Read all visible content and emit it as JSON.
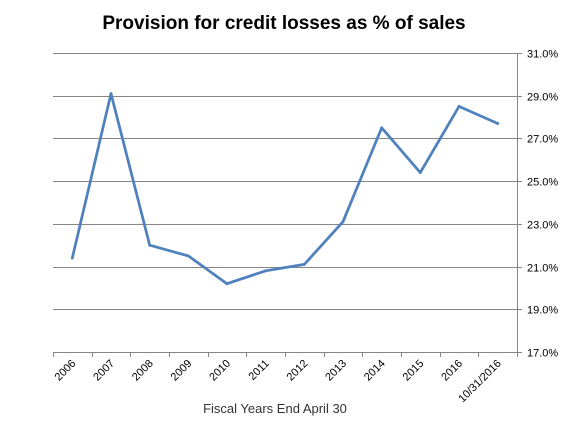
{
  "chart_data": {
    "type": "line",
    "title": "Provision for credit losses as % of sales",
    "xlabel": "Fiscal Years End April 30",
    "ylabel": "",
    "categories": [
      "2006",
      "2007",
      "2008",
      "2009",
      "2010",
      "2011",
      "2012",
      "2013",
      "2014",
      "2015",
      "2016",
      "10/31/2016"
    ],
    "series": [
      {
        "values": [
          21.4,
          29.1,
          22.0,
          21.5,
          20.2,
          20.8,
          21.1,
          23.1,
          27.5,
          25.4,
          28.5,
          27.7
        ]
      }
    ],
    "ylim": [
      17.0,
      31.0
    ],
    "yticks": [
      17.0,
      19.0,
      21.0,
      23.0,
      25.0,
      27.0,
      29.0,
      31.0
    ],
    "ytick_labels": [
      "17.0%",
      "19.0%",
      "21.0%",
      "23.0%",
      "25.0%",
      "27.0%",
      "29.0%",
      "31.0%"
    ],
    "y_axis_side": "right",
    "grid": "horizontal",
    "legend": "none",
    "colors": {
      "line": "#4F81BD",
      "grid": "#868686",
      "axis": "#868686"
    }
  }
}
